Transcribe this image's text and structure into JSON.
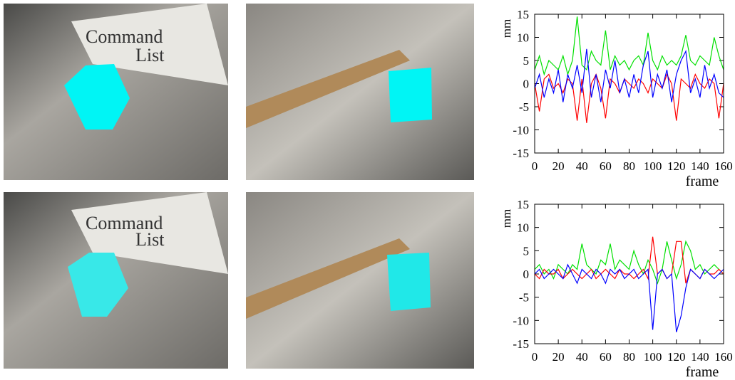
{
  "photo_text": [
    "Command",
    "List"
  ],
  "chart_data": [
    {
      "type": "line",
      "ylabel": "mm",
      "xlabel": "frame",
      "x": [
        0,
        4,
        8,
        12,
        16,
        20,
        24,
        28,
        32,
        36,
        40,
        44,
        48,
        52,
        56,
        60,
        64,
        68,
        72,
        76,
        80,
        84,
        88,
        92,
        96,
        100,
        104,
        108,
        112,
        116,
        120,
        124,
        128,
        132,
        136,
        140,
        144,
        148,
        152,
        156,
        160
      ],
      "xlim": [
        0,
        160
      ],
      "ylim": [
        -15,
        15
      ],
      "xticks": [
        0,
        20,
        40,
        60,
        80,
        100,
        120,
        140,
        160
      ],
      "yticks": [
        -15,
        -10,
        -5,
        0,
        5,
        10,
        15
      ],
      "series": [
        {
          "color": "#00e000",
          "values": [
            3,
            6,
            2,
            5,
            4,
            3,
            6,
            2,
            5,
            14.5,
            4,
            3,
            7,
            5,
            4,
            11.5,
            3,
            6,
            4,
            5,
            3,
            5,
            6,
            4,
            11,
            5,
            3,
            6,
            4,
            5,
            4,
            6,
            10.5,
            5,
            4,
            6,
            5,
            4,
            10,
            6,
            3
          ]
        },
        {
          "color": "#ff0000",
          "values": [
            0,
            -6,
            1,
            2,
            -1,
            0,
            -2,
            1,
            0,
            -8,
            1,
            -8.5,
            0,
            2,
            -1,
            -7.5,
            1,
            0,
            -2,
            1,
            0,
            -1,
            1,
            0,
            -2,
            1,
            0,
            -1,
            2,
            0,
            -8,
            1,
            0,
            -1,
            2,
            0,
            -1,
            1,
            0,
            -7.5,
            0
          ]
        },
        {
          "color": "#0000ff",
          "values": [
            -1,
            2,
            -3,
            1,
            -2,
            3,
            -4,
            2,
            -1,
            4,
            -2,
            7.5,
            -3,
            2,
            -4,
            3,
            -1,
            5,
            -2,
            1,
            -3,
            2,
            -2,
            4,
            7,
            -3,
            2,
            -1,
            3,
            -4,
            2,
            5,
            7,
            -2,
            1,
            -3,
            4,
            -1,
            2,
            -2,
            -3
          ]
        }
      ]
    },
    {
      "type": "line",
      "ylabel": "mm",
      "xlabel": "frame",
      "x": [
        0,
        4,
        8,
        12,
        16,
        20,
        24,
        28,
        32,
        36,
        40,
        44,
        48,
        52,
        56,
        60,
        64,
        68,
        72,
        76,
        80,
        84,
        88,
        92,
        96,
        100,
        104,
        108,
        112,
        116,
        120,
        124,
        128,
        132,
        136,
        140,
        144,
        148,
        152,
        156,
        160
      ],
      "xlim": [
        0,
        160
      ],
      "ylim": [
        -15,
        15
      ],
      "xticks": [
        0,
        20,
        40,
        60,
        80,
        100,
        120,
        140,
        160
      ],
      "yticks": [
        -15,
        -10,
        -5,
        0,
        5,
        10,
        15
      ],
      "series": [
        {
          "color": "#00e000",
          "values": [
            1,
            2,
            0,
            1,
            -1,
            2,
            1,
            0,
            2,
            1,
            6.5,
            2,
            1,
            0,
            3,
            2,
            6.5,
            1,
            3,
            2,
            1,
            5,
            2,
            0,
            3,
            1,
            -2,
            1,
            7,
            3,
            -1,
            2,
            7,
            5,
            1,
            2,
            0,
            1,
            2,
            1,
            0
          ]
        },
        {
          "color": "#ff0000",
          "values": [
            0,
            -1,
            1,
            0,
            0,
            1,
            -1,
            0,
            1,
            0,
            -1,
            0,
            1,
            -1,
            0,
            1,
            0,
            -1,
            1,
            0,
            0,
            -1,
            0,
            1,
            -1,
            8,
            0,
            1,
            -1,
            0,
            7,
            7,
            -2,
            1,
            0,
            -1,
            1,
            0,
            0,
            1,
            0
          ]
        },
        {
          "color": "#0000ff",
          "values": [
            0,
            1,
            -1,
            0,
            1,
            0,
            -1,
            2,
            0,
            -2,
            1,
            0,
            -1,
            1,
            0,
            -2,
            1,
            0,
            1,
            -1,
            0,
            1,
            -1,
            0,
            1,
            -12,
            0,
            1,
            -1,
            0,
            -12.5,
            -9,
            -3,
            1,
            0,
            -1,
            1,
            0,
            -1,
            0,
            1
          ]
        }
      ]
    }
  ]
}
